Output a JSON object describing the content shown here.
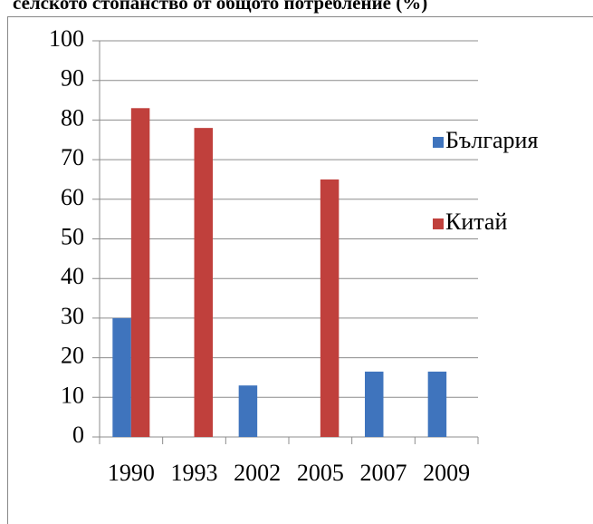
{
  "chart_data": {
    "type": "bar",
    "title": "селското стопанство от общото потребление (%)",
    "categories": [
      "1990",
      "1993",
      "2002",
      "2005",
      "2007",
      "2009"
    ],
    "series": [
      {
        "name": "България",
        "color": "#3f74bd",
        "values": [
          30,
          null,
          13,
          null,
          16.5,
          16.5
        ]
      },
      {
        "name": "Китай",
        "color": "#c0403c",
        "values": [
          83,
          78,
          null,
          65,
          null,
          null
        ]
      }
    ],
    "ylim": [
      0,
      100
    ],
    "yticks": [
      0,
      10,
      20,
      30,
      40,
      50,
      60,
      70,
      80,
      90,
      100
    ],
    "grid": true,
    "legend": "right"
  }
}
